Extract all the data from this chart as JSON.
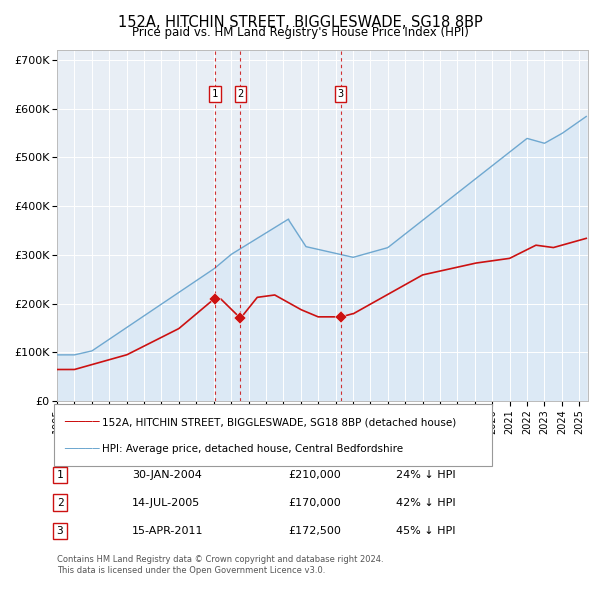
{
  "title_line1": "152A, HITCHIN STREET, BIGGLESWADE, SG18 8BP",
  "title_line2": "Price paid vs. HM Land Registry's House Price Index (HPI)",
  "hpi_label": "HPI: Average price, detached house, Central Bedfordshire",
  "property_label": "152A, HITCHIN STREET, BIGGLESWADE, SG18 8BP (detached house)",
  "hpi_color": "#6fa8d0",
  "hpi_fill_color": "#dce9f5",
  "property_color": "#cc1111",
  "vline_color": "#cc1111",
  "plot_bg_color": "#e8eef5",
  "ylim": [
    0,
    720000
  ],
  "ytick_labels": [
    "£0",
    "£100K",
    "£200K",
    "£300K",
    "£400K",
    "£500K",
    "£600K",
    "£700K"
  ],
  "transactions": [
    {
      "num": 1,
      "date": "2004-01-30",
      "price": 210000,
      "pct": "24%",
      "x_num": 2004.08
    },
    {
      "num": 2,
      "date": "2005-07-14",
      "price": 170000,
      "pct": "42%",
      "x_num": 2005.54
    },
    {
      "num": 3,
      "date": "2011-04-15",
      "price": 172500,
      "pct": "45%",
      "x_num": 2011.29
    }
  ],
  "table_rows": [
    [
      "1",
      "30-JAN-2004",
      "£210,000",
      "24% ↓ HPI"
    ],
    [
      "2",
      "14-JUL-2005",
      "£170,000",
      "42% ↓ HPI"
    ],
    [
      "3",
      "15-APR-2011",
      "£172,500",
      "45% ↓ HPI"
    ]
  ],
  "footnote_line1": "Contains HM Land Registry data © Crown copyright and database right 2024.",
  "footnote_line2": "This data is licensed under the Open Government Licence v3.0.",
  "xmin": 1995.0,
  "xmax": 2025.5
}
